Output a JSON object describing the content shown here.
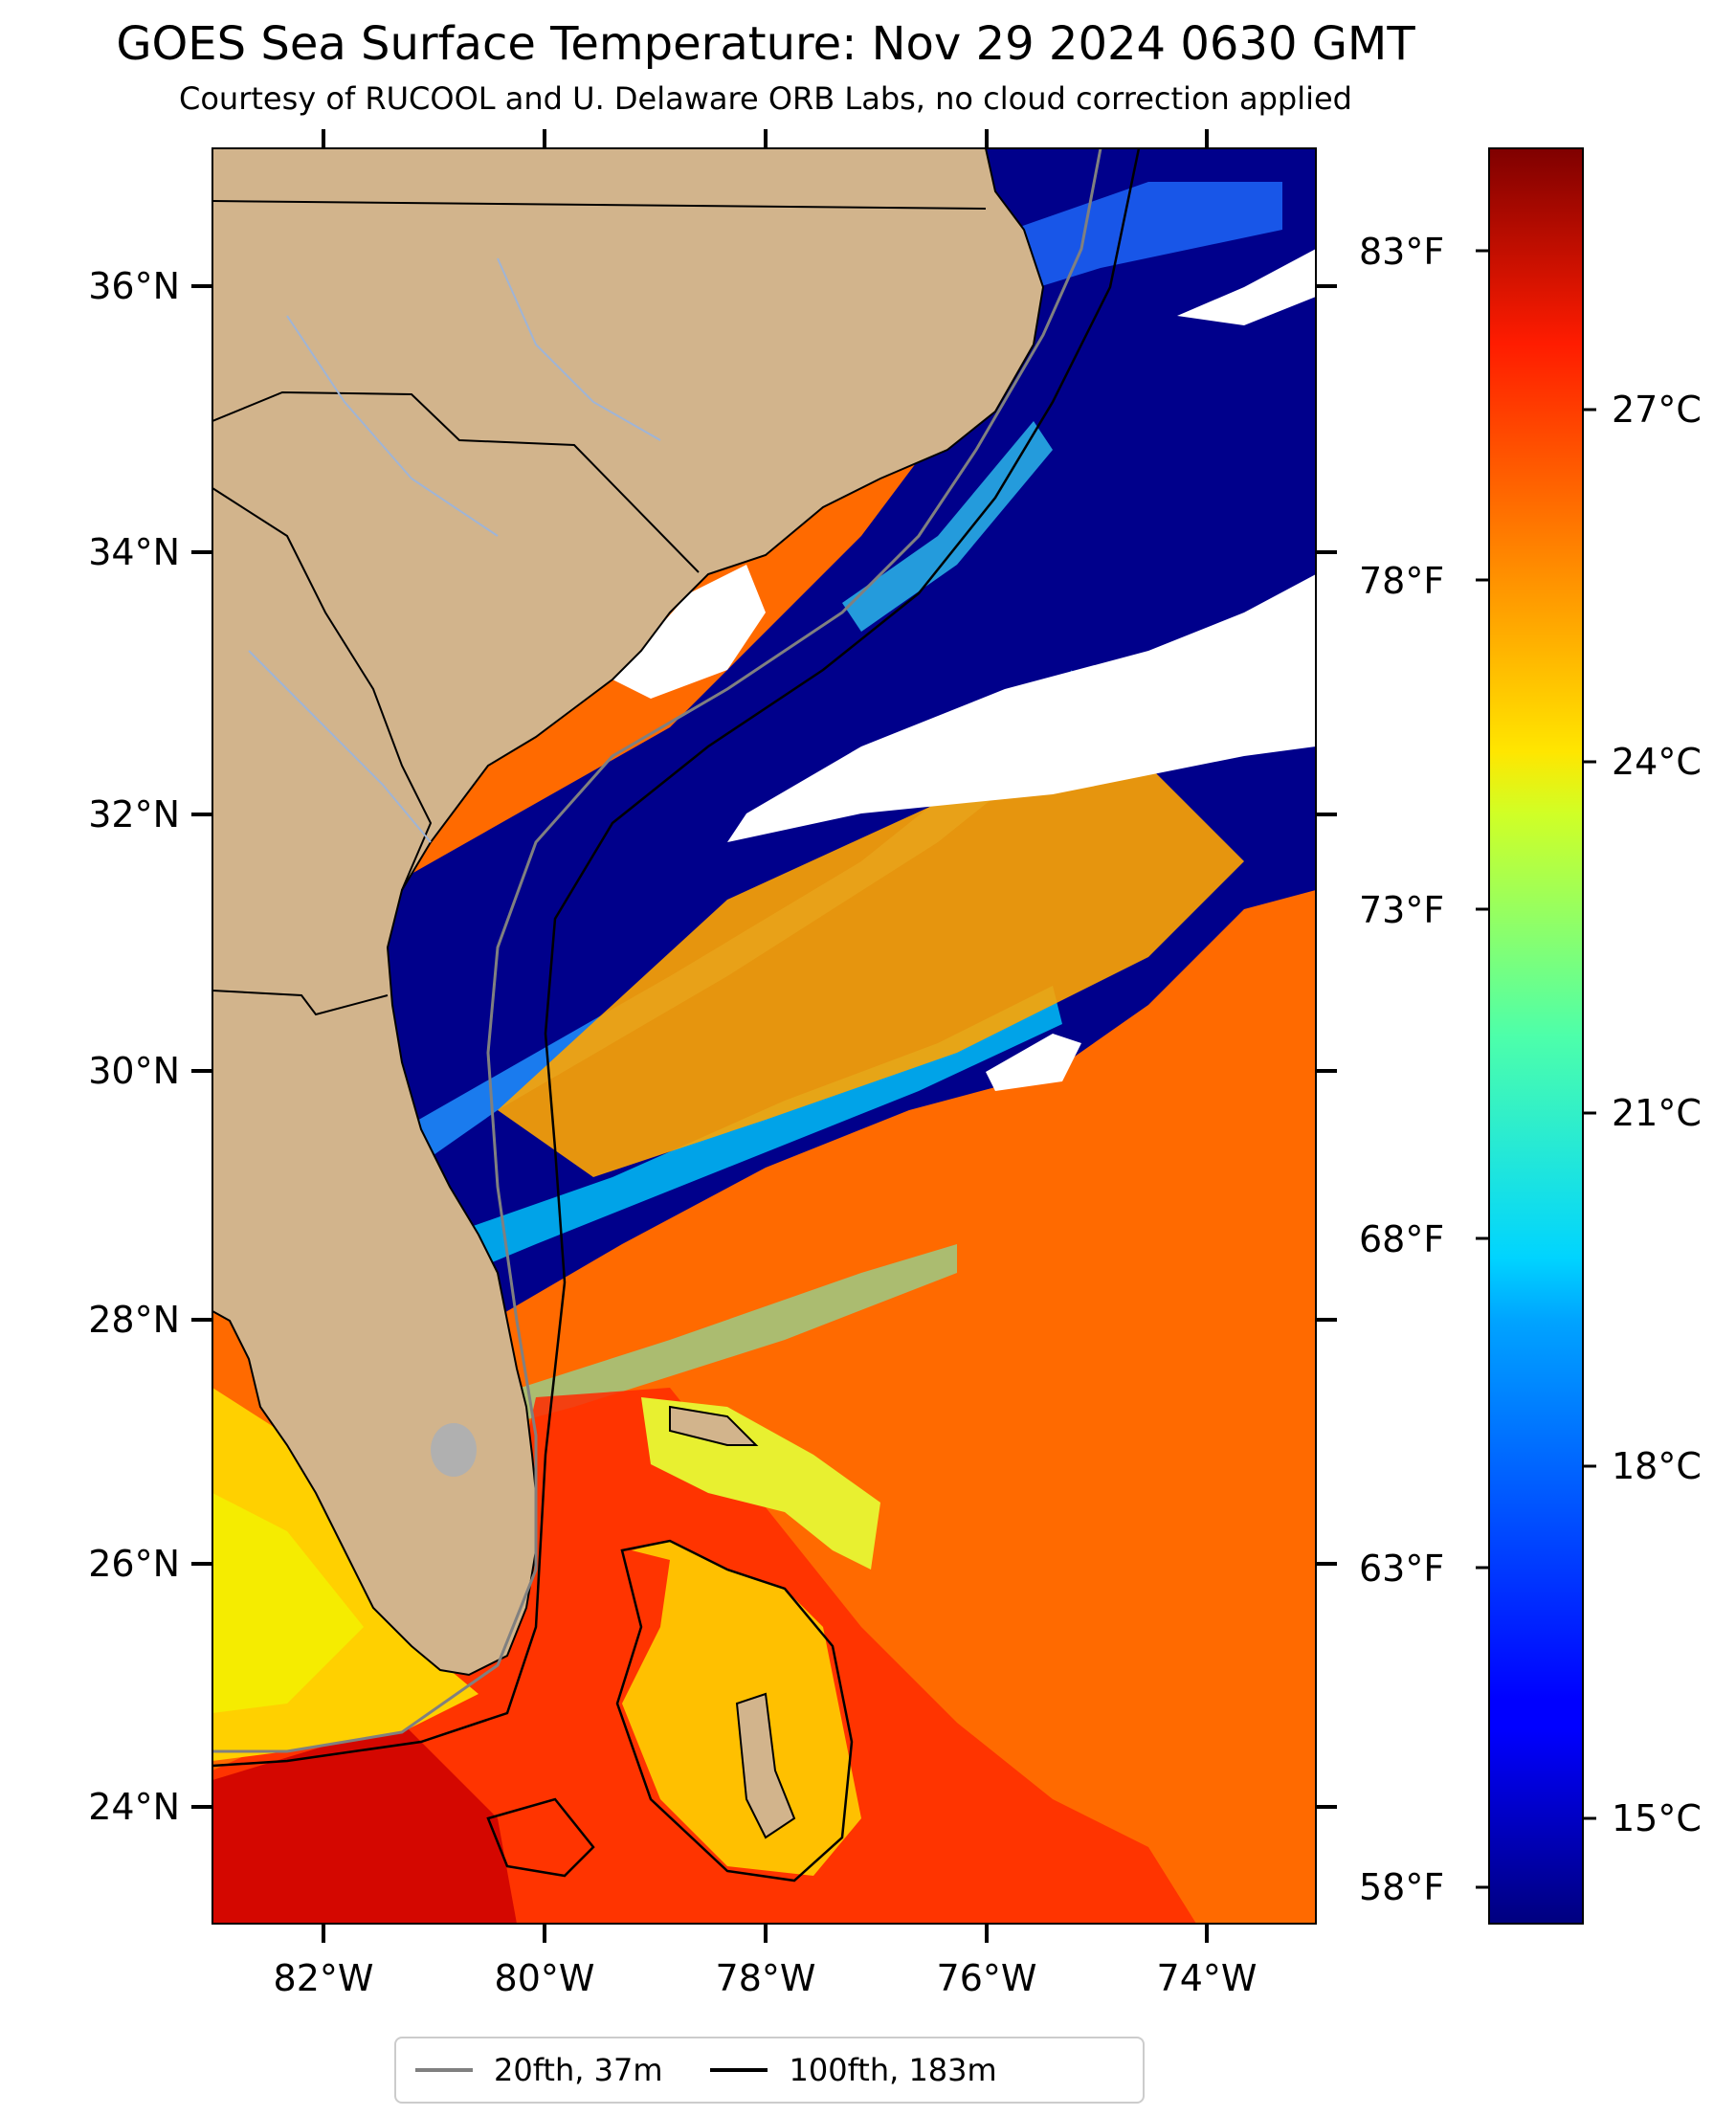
{
  "header": {
    "title": "GOES Sea Surface Temperature: Nov 29 2024 0630 GMT",
    "subtitle": "Courtesy of RUCOOL and U. Delaware ORB Labs, no cloud correction applied"
  },
  "map": {
    "lon_range": [
      -83,
      -73
    ],
    "lat_range": [
      23.5,
      37.0
    ],
    "lat_ticks": [
      "36°N",
      "34°N",
      "32°N",
      "30°N",
      "28°N",
      "26°N",
      "24°N"
    ],
    "lon_ticks": [
      "82°W",
      "80°W",
      "78°W",
      "76°W",
      "74°W"
    ],
    "colors": {
      "land": "#d2b48c",
      "cloud": "#ffffff",
      "cold": "#00008b",
      "warm": "#ff6a00",
      "lake": "#b0b0b0",
      "river": "#9fb4d6"
    }
  },
  "colorbar": {
    "colormap": "jet",
    "celsius_ticks": [
      "27°C",
      "24°C",
      "21°C",
      "18°C",
      "15°C"
    ],
    "fahrenheit_ticks": [
      "83°F",
      "78°F",
      "73°F",
      "68°F",
      "63°F",
      "58°F"
    ]
  },
  "legend": {
    "items": [
      {
        "label": "20fth, 37m",
        "color": "#808080"
      },
      {
        "label": "100fth, 183m",
        "color": "#000000"
      }
    ]
  }
}
